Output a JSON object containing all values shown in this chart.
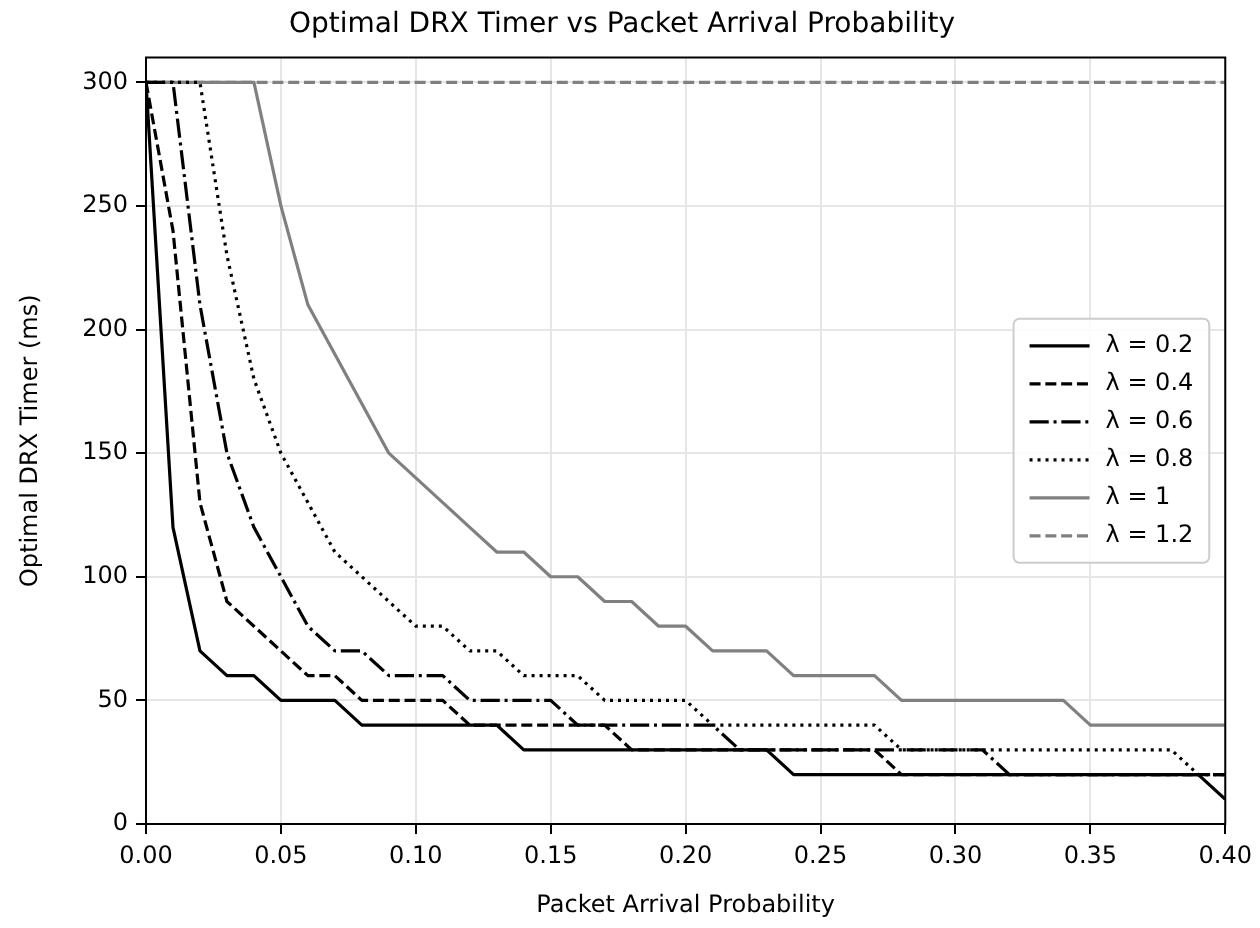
{
  "chart_data": {
    "type": "line",
    "title": "Optimal DRX Timer vs Packet Arrival Probability",
    "xlabel": "Packet Arrival Probability",
    "ylabel": "Optimal DRX Timer (ms)",
    "x": [
      0,
      0.01,
      0.02,
      0.03,
      0.04,
      0.05,
      0.06,
      0.07,
      0.08,
      0.09,
      0.1,
      0.11,
      0.12,
      0.13,
      0.14,
      0.15,
      0.16,
      0.17,
      0.18,
      0.19,
      0.2,
      0.21,
      0.22,
      0.23,
      0.24,
      0.25,
      0.26,
      0.27,
      0.28,
      0.29,
      0.3,
      0.31,
      0.32,
      0.33,
      0.34,
      0.35,
      0.36,
      0.37,
      0.38,
      0.39,
      0.4
    ],
    "series": [
      {
        "name": "λ = 0.2",
        "color": "#000000",
        "line_style": "solid",
        "values": [
          300,
          120,
          70,
          60,
          60,
          50,
          50,
          50,
          40,
          40,
          40,
          40,
          40,
          40,
          30,
          30,
          30,
          30,
          30,
          30,
          30,
          30,
          30,
          30,
          20,
          20,
          20,
          20,
          20,
          20,
          20,
          20,
          20,
          20,
          20,
          20,
          20,
          20,
          20,
          20,
          10
        ]
      },
      {
        "name": "λ = 0.4",
        "color": "#000000",
        "line_style": "dashed",
        "values": [
          300,
          240,
          130,
          90,
          80,
          70,
          60,
          60,
          50,
          50,
          50,
          50,
          40,
          40,
          40,
          40,
          40,
          40,
          30,
          30,
          30,
          30,
          30,
          30,
          30,
          30,
          30,
          30,
          20,
          20,
          20,
          20,
          20,
          20,
          20,
          20,
          20,
          20,
          20,
          20,
          20
        ]
      },
      {
        "name": "λ = 0.6",
        "color": "#000000",
        "line_style": "dashdot",
        "values": [
          300,
          300,
          210,
          150,
          120,
          100,
          80,
          70,
          70,
          60,
          60,
          60,
          50,
          50,
          50,
          50,
          40,
          40,
          40,
          40,
          40,
          40,
          30,
          30,
          30,
          30,
          30,
          30,
          30,
          30,
          30,
          30,
          20,
          20,
          20,
          20,
          20,
          20,
          20,
          20,
          20
        ]
      },
      {
        "name": "λ = 0.8",
        "color": "#000000",
        "line_style": "dotted",
        "values": [
          300,
          300,
          300,
          230,
          180,
          150,
          130,
          110,
          100,
          90,
          80,
          80,
          70,
          70,
          60,
          60,
          60,
          50,
          50,
          50,
          50,
          40,
          40,
          40,
          40,
          40,
          40,
          40,
          30,
          30,
          30,
          30,
          30,
          30,
          30,
          30,
          30,
          30,
          30,
          20,
          20
        ]
      },
      {
        "name": "λ = 1",
        "color": "#808080",
        "line_style": "solid",
        "values": [
          300,
          300,
          300,
          300,
          300,
          250,
          210,
          190,
          170,
          150,
          140,
          130,
          120,
          110,
          110,
          100,
          100,
          90,
          90,
          80,
          80,
          70,
          70,
          70,
          60,
          60,
          60,
          60,
          50,
          50,
          50,
          50,
          50,
          50,
          50,
          40,
          40,
          40,
          40,
          40,
          40
        ]
      },
      {
        "name": "λ = 1.2",
        "color": "#808080",
        "line_style": "dashed",
        "values": [
          300,
          300,
          300,
          300,
          300,
          300,
          300,
          300,
          300,
          300,
          300,
          300,
          300,
          300,
          300,
          300,
          300,
          300,
          300,
          300,
          300,
          300,
          300,
          300,
          300,
          300,
          300,
          300,
          300,
          300,
          300,
          300,
          300,
          300,
          300,
          300,
          300,
          300,
          300,
          300,
          300
        ]
      }
    ],
    "xlim": [
      0,
      0.4
    ],
    "xticks": [
      {
        "value": 0,
        "label": "0.00"
      },
      {
        "value": 0.05,
        "label": "0.05"
      },
      {
        "value": 0.1,
        "label": "0.10"
      },
      {
        "value": 0.15,
        "label": "0.15"
      },
      {
        "value": 0.2,
        "label": "0.20"
      },
      {
        "value": 0.25,
        "label": "0.25"
      },
      {
        "value": 0.3,
        "label": "0.30"
      },
      {
        "value": 0.35,
        "label": "0.35"
      },
      {
        "value": 0.4,
        "label": "0.40"
      }
    ],
    "ylim": [
      0,
      310
    ],
    "yticks": [
      0,
      50,
      100,
      150,
      200,
      250,
      300
    ],
    "grid": true,
    "legend": "center right",
    "marker": "none"
  }
}
